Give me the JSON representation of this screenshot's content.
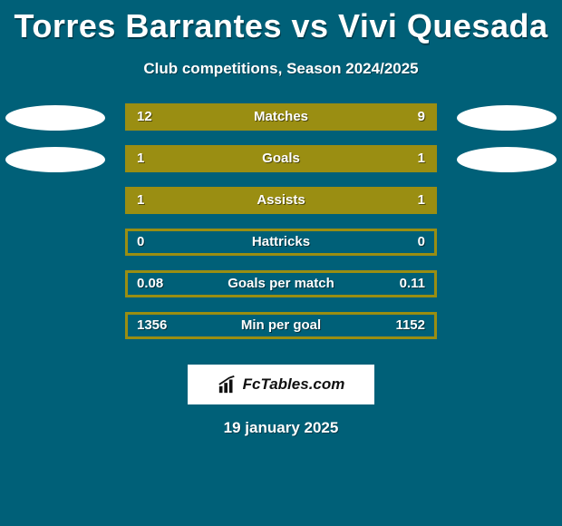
{
  "background_color": "#006078",
  "title": "Torres Barrantes vs Vivi Quesada",
  "title_fontsize": 36,
  "title_color": "#ffffff",
  "subtitle": "Club competitions, Season 2024/2025",
  "subtitle_fontsize": 17,
  "bar_color": "#9a8e12",
  "bar_border_color": "#9a8e12",
  "bar_bg_color": "#006078",
  "oval_color": "#ffffff",
  "rows": [
    {
      "label": "Matches",
      "left": "12",
      "right": "9",
      "leftPct": 100,
      "rightPct": 0,
      "showOvals": true
    },
    {
      "label": "Goals",
      "left": "1",
      "right": "1",
      "leftPct": 50,
      "rightPct": 50,
      "showOvals": true
    },
    {
      "label": "Assists",
      "left": "1",
      "right": "1",
      "leftPct": 50,
      "rightPct": 50,
      "showOvals": false
    },
    {
      "label": "Hattricks",
      "left": "0",
      "right": "0",
      "leftPct": 0,
      "rightPct": 0,
      "showOvals": false
    },
    {
      "label": "Goals per match",
      "left": "0.08",
      "right": "0.11",
      "leftPct": 0,
      "rightPct": 0,
      "showOvals": false
    },
    {
      "label": "Min per goal",
      "left": "1356",
      "right": "1152",
      "leftPct": 0,
      "rightPct": 0,
      "showOvals": false
    }
  ],
  "brand": "FcTables.com",
  "date": "19 january 2025",
  "label_fontsize": 15,
  "value_fontsize": 15,
  "text_color": "#ffffff"
}
